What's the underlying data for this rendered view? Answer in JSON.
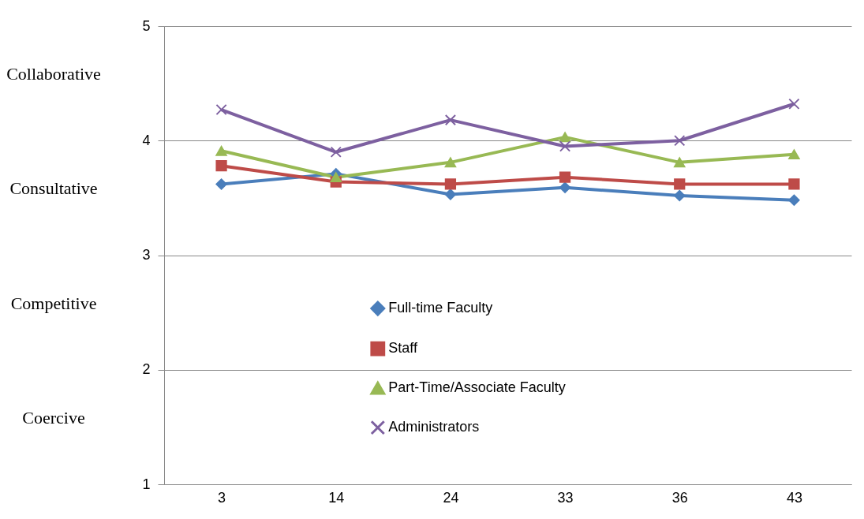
{
  "chart_data": {
    "type": "line",
    "categories": [
      "3",
      "14",
      "24",
      "33",
      "36",
      "43"
    ],
    "series": [
      {
        "name": "Full-time Faculty",
        "color": "#4a7ebb",
        "marker": "diamond",
        "values": [
          3.62,
          3.71,
          3.53,
          3.59,
          3.52,
          3.48
        ]
      },
      {
        "name": "Staff",
        "color": "#be4b48",
        "marker": "square",
        "values": [
          3.78,
          3.64,
          3.62,
          3.68,
          3.62,
          3.62
        ]
      },
      {
        "name": "Part-Time/Associate Faculty",
        "color": "#98b954",
        "marker": "triangle",
        "values": [
          3.91,
          3.68,
          3.81,
          4.03,
          3.81,
          3.88
        ]
      },
      {
        "name": "Administrators",
        "color": "#7d60a0",
        "marker": "cross",
        "values": [
          4.27,
          3.9,
          4.18,
          3.95,
          4.0,
          4.32
        ]
      }
    ],
    "ylim": [
      1,
      5
    ],
    "yticks": [
      1,
      2,
      3,
      4,
      5
    ],
    "grid": "y",
    "legend": "bottom",
    "annotations": [
      "Collaborative",
      "Consultative",
      "Competitive",
      "Coercive"
    ]
  }
}
